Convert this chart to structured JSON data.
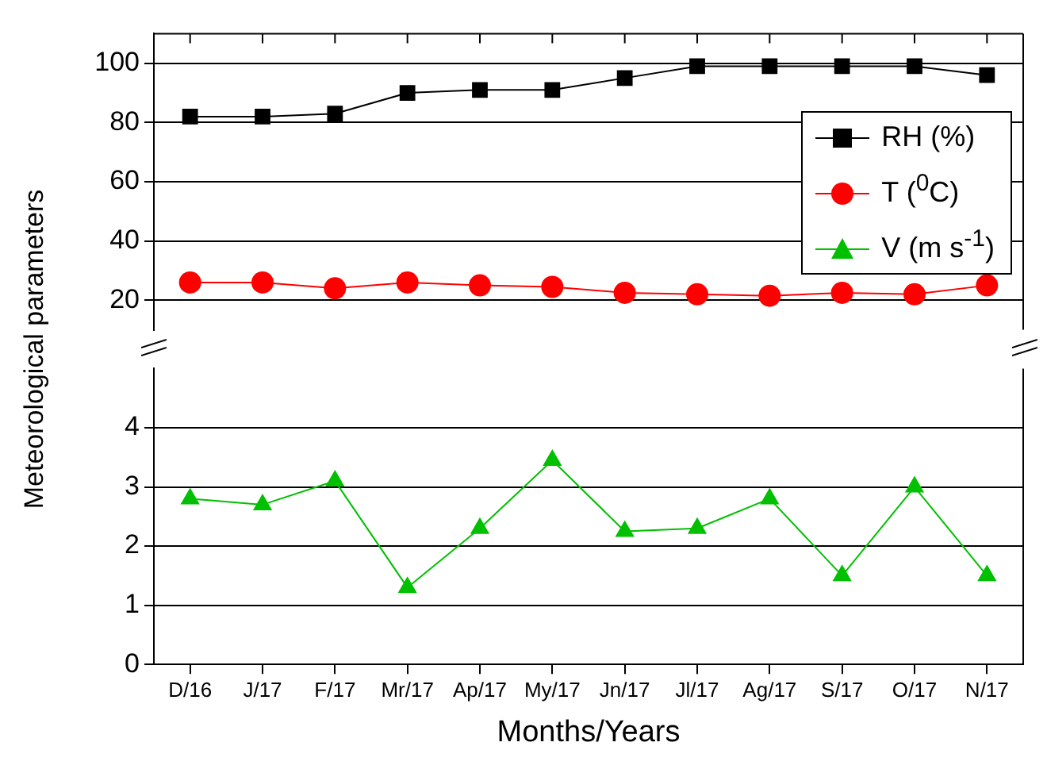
{
  "chart_data": [
    {
      "type": "line",
      "categories": [
        null,
        null,
        null,
        null,
        null,
        null,
        null,
        null,
        null,
        null,
        null,
        null
      ],
      "series": [
        {
          "name": "RH (%)",
          "color": "#000000",
          "marker": "square",
          "values": [
            82,
            82,
            83,
            90,
            91,
            91,
            95,
            99,
            99,
            99,
            99,
            96
          ]
        },
        {
          "name": "T ($^{0}$C)",
          "color": "#ff0000",
          "marker": "circle",
          "values": [
            26,
            26,
            24,
            26,
            25,
            24.5,
            22.5,
            22,
            21.5,
            22.5,
            22,
            25
          ]
        }
      ],
      "ylim": [
        10,
        110
      ],
      "yticks": [
        20,
        40,
        60,
        80,
        100
      ],
      "grid": "y",
      "legend": "top right",
      "tick_labels": "y"
    },
    {
      "type": "line",
      "xlabel": "Months/Years",
      "ylabel": "Meteorological parameters",
      "categories": [
        "D/16",
        "J/17",
        "F/17",
        "Mr/17",
        "Ap/17",
        "My/17",
        "Jn/17",
        "Jl/17",
        "Ag/17",
        "S/17",
        "O/17",
        "N/17"
      ],
      "series": [
        {
          "name": "V (m s$^{-1}$)",
          "color": "#00c000",
          "marker": "triangle",
          "values": [
            2.8,
            2.7,
            3.1,
            1.3,
            2.3,
            3.45,
            2.25,
            2.3,
            2.8,
            1.5,
            3.0,
            1.5
          ]
        }
      ],
      "ylim": [
        0,
        5
      ],
      "yticks": [
        0,
        1,
        2,
        3,
        4
      ],
      "grid": "y",
      "legend": "top right"
    }
  ]
}
